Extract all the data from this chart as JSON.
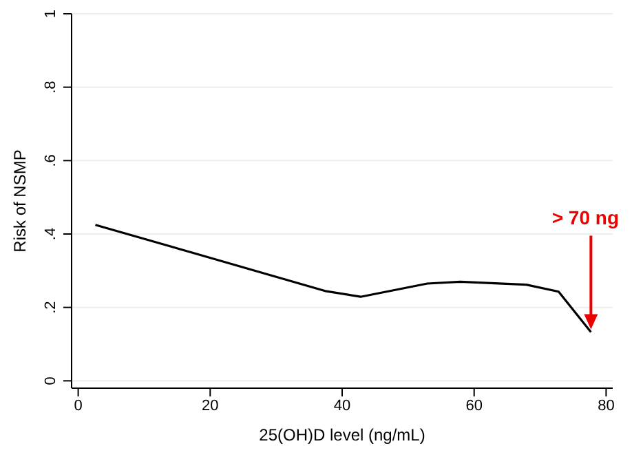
{
  "chart_data": {
    "type": "line",
    "xlabel": "25(OH)D level (ng/mL)",
    "ylabel": "Risk of NSMP",
    "x": [
      2.6,
      17.7,
      37.6,
      42.8,
      52.9,
      57.9,
      67.9,
      72.8,
      77.7
    ],
    "series": [
      {
        "color": "#000000",
        "values": [
          0.425,
          0.347,
          0.244,
          0.229,
          0.265,
          0.27,
          0.262,
          0.243,
          0.133
        ]
      }
    ],
    "xlim": [
      -1,
      81
    ],
    "xticks": [
      0,
      20,
      40,
      60,
      80
    ],
    "ylim": [
      -0.02,
      1
    ],
    "yticks": [
      {
        "value": 0,
        "label": "0"
      },
      {
        "value": 0.2,
        "label": ".2"
      },
      {
        "value": 0.4,
        "label": ".4"
      },
      {
        "value": 0.6,
        "label": ".6"
      },
      {
        "value": 0.8,
        "label": ".8"
      },
      {
        "value": 1,
        "label": "1"
      }
    ],
    "grid": "y",
    "marker": "none",
    "line_style": "solid",
    "annotations": [
      "> 70 ng"
    ]
  }
}
